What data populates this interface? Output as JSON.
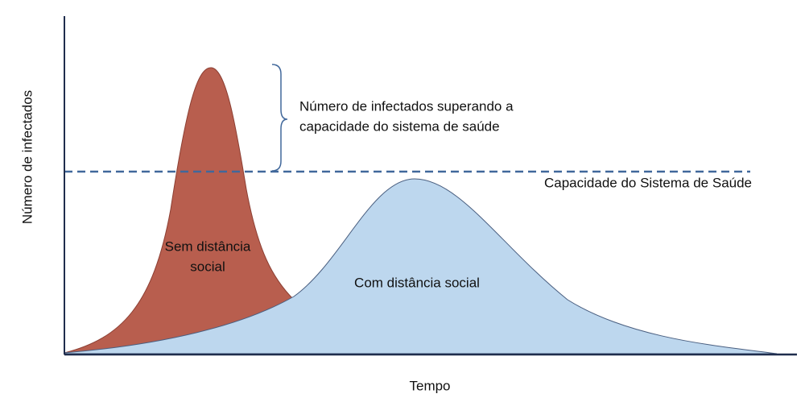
{
  "y_axis_label": "Número de infectados",
  "x_axis_label": "Tempo",
  "capacity_label": "Capacidade do Sistema de Saúde",
  "annotation": {
    "lines": [
      "Número de infectados superando a",
      "capacidade do sistema de saúde"
    ]
  },
  "curves": [
    {
      "label_lines": [
        "Sem distância",
        "social"
      ]
    },
    {
      "label_lines": [
        "Com distância social"
      ]
    }
  ]
}
